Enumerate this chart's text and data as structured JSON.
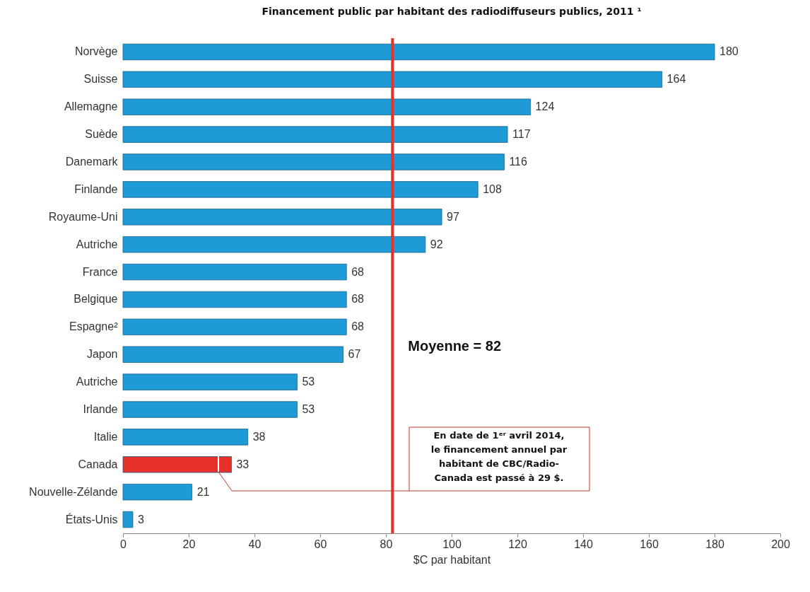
{
  "chart_data": {
    "type": "bar",
    "orientation": "horizontal",
    "title": "Financement public par habitant des radiodiffuseurs publics, 2011 ¹",
    "xlabel": "$C par habitant",
    "categories": [
      "Norvège",
      "Suisse",
      "Allemagne",
      "Suède",
      "Danemark",
      "Finlande",
      "Royaume-Uni",
      "Autriche",
      "France",
      "Belgique",
      "Espagne²",
      "Japon",
      "Autriche",
      "Irlande",
      "Italie",
      "Canada",
      "Nouvelle-Zélande",
      "États-Unis"
    ],
    "values": [
      180,
      164,
      124,
      117,
      116,
      108,
      97,
      92,
      68,
      68,
      68,
      67,
      53,
      53,
      38,
      33,
      21,
      3
    ],
    "colors": [
      "#1e9ad6",
      "#1e9ad6",
      "#1e9ad6",
      "#1e9ad6",
      "#1e9ad6",
      "#1e9ad6",
      "#1e9ad6",
      "#1e9ad6",
      "#1e9ad6",
      "#1e9ad6",
      "#1e9ad6",
      "#1e9ad6",
      "#1e9ad6",
      "#1e9ad6",
      "#1e9ad6",
      "#e8302a",
      "#1e9ad6",
      "#1e9ad6"
    ],
    "data_labels": true,
    "xlim": [
      0,
      200
    ],
    "xticks": [
      0,
      20,
      40,
      60,
      80,
      100,
      120,
      140,
      160,
      180,
      200
    ],
    "grid": false,
    "legend": false,
    "ref_lines": [
      {
        "axis": "x",
        "value": 82,
        "label": "Moyenne = 82",
        "color": "#e8302a"
      }
    ],
    "annotations": [
      "En date de 1ᵉʳ avril 2014,\nle financement annuel par\nhabitant de CBC/Radio-\nCanada est passé à 29 $."
    ]
  }
}
